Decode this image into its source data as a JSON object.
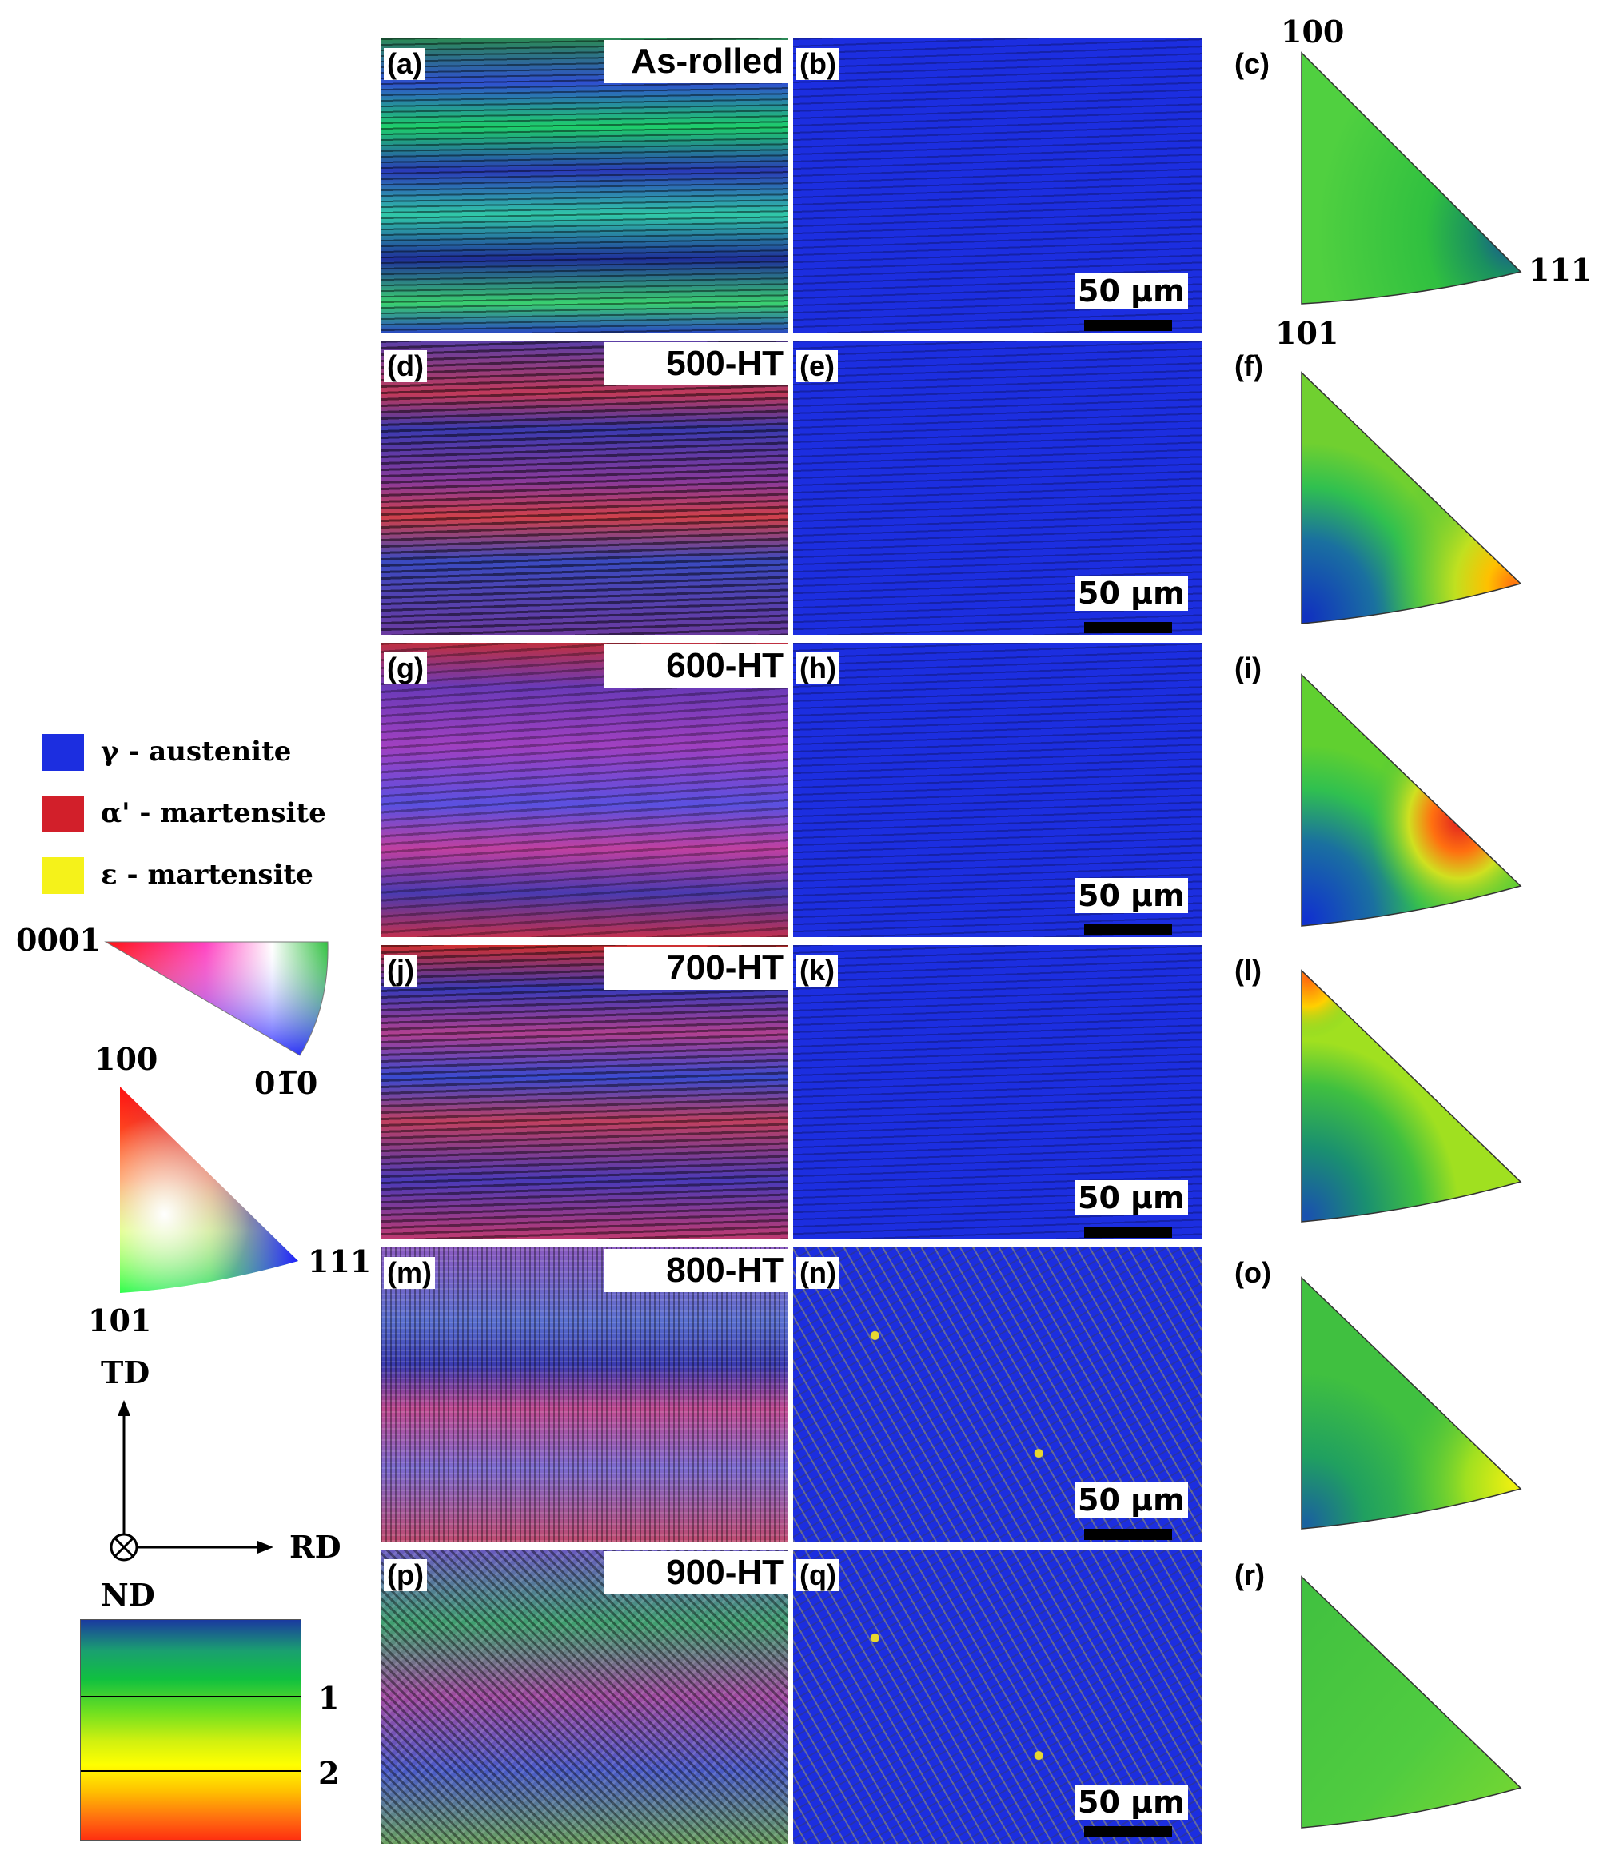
{
  "figure": {
    "rows": [
      {
        "condition": "As-rolled",
        "ipf_label": "(a)",
        "phase_label": "(b)",
        "pole_label": "(c)",
        "scale": "50 μm"
      },
      {
        "condition": "500-HT",
        "ipf_label": "(d)",
        "phase_label": "(e)",
        "pole_label": "(f)",
        "scale": "50 μm"
      },
      {
        "condition": "600-HT",
        "ipf_label": "(g)",
        "phase_label": "(h)",
        "pole_label": "(i)",
        "scale": "50 μm"
      },
      {
        "condition": "700-HT",
        "ipf_label": "(j)",
        "phase_label": "(k)",
        "pole_label": "(l)",
        "scale": "50 μm"
      },
      {
        "condition": "800-HT",
        "ipf_label": "(m)",
        "phase_label": "(n)",
        "pole_label": "(o)",
        "scale": "50 μm"
      },
      {
        "condition": "900-HT",
        "ipf_label": "(p)",
        "phase_label": "(q)",
        "pole_label": "(r)",
        "scale": "50 μm"
      }
    ],
    "pole_figure_axes": {
      "top": "100",
      "right": "111",
      "bottom": "101"
    }
  },
  "legend": {
    "phases": [
      {
        "label": "γ - austenite",
        "color": "#1c2ee0"
      },
      {
        "label": "α' - martensite",
        "color": "#d21f2a"
      },
      {
        "label": "ε - martensite",
        "color": "#f5f21a"
      }
    ],
    "hcp_key": {
      "left": "0001",
      "right": "01̅0"
    },
    "fcc_key": {
      "top": "100",
      "right": "111",
      "bottom": "101"
    },
    "axes": {
      "up": "TD",
      "right": "RD",
      "normal": "ND"
    },
    "intensity_scale": {
      "level1": "1",
      "level2": "2"
    }
  }
}
